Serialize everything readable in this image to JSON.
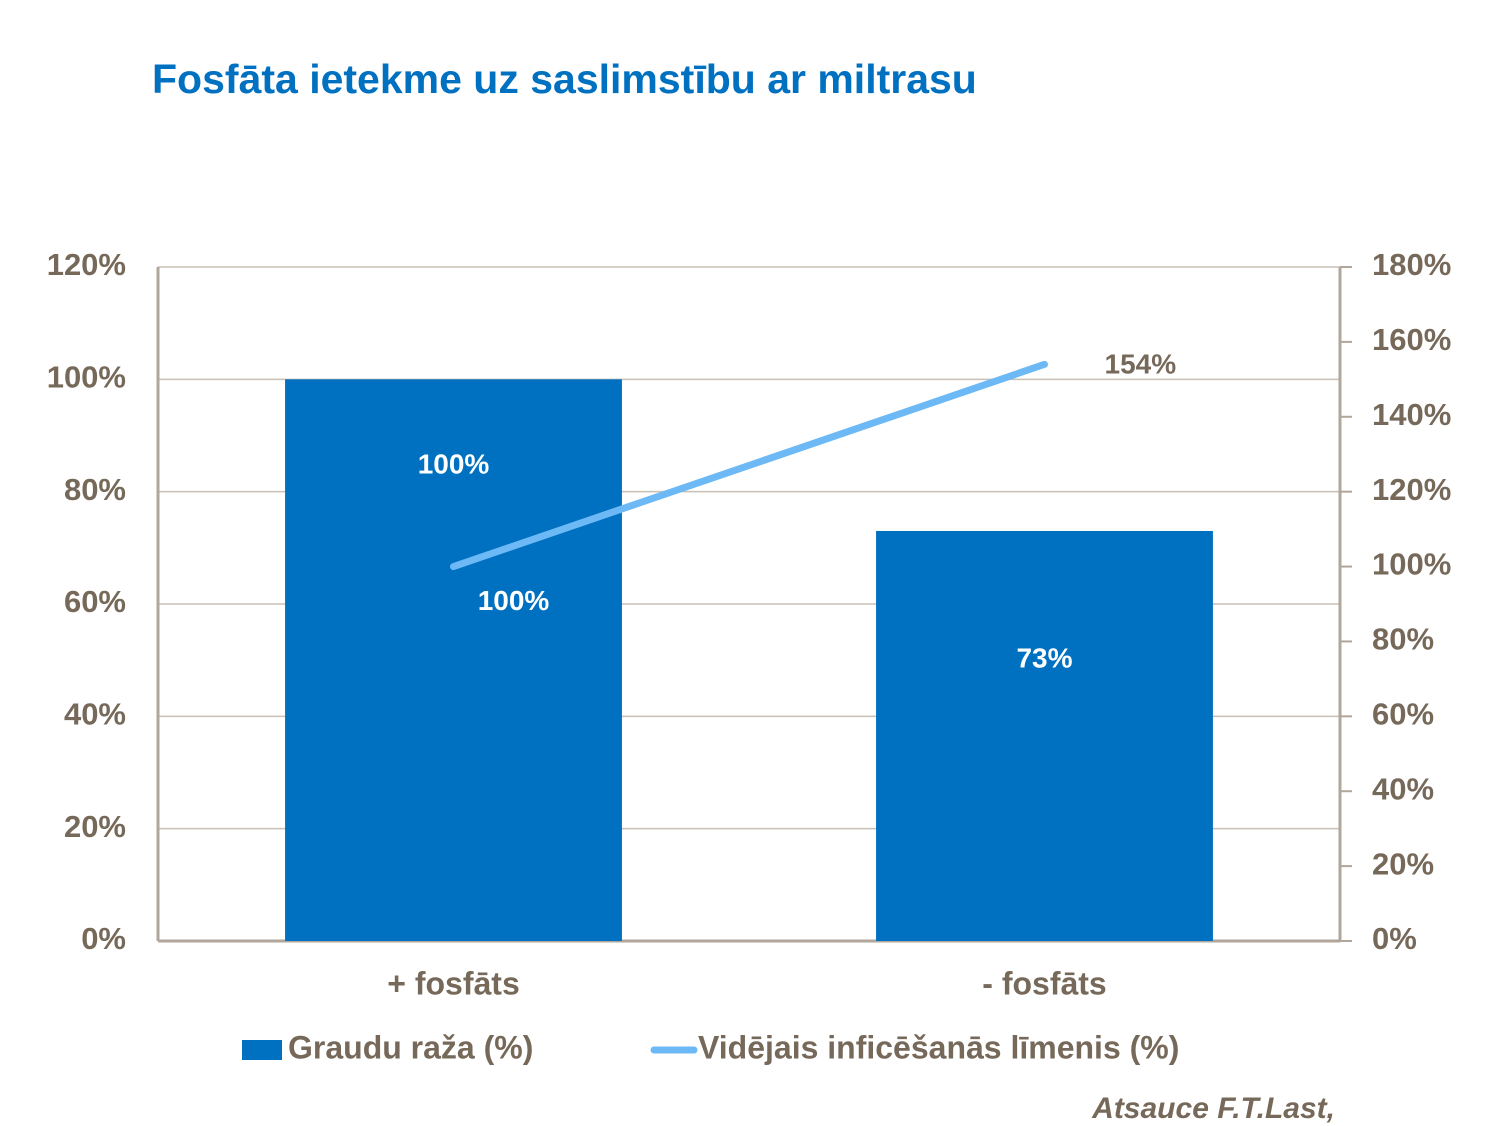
{
  "chart_data": {
    "type": "bar_line",
    "title": "Fosfāta ietekme uz saslimstību ar miltrasu",
    "categories": [
      "+ fosfāts",
      "- fosfāts"
    ],
    "series": [
      {
        "name": "Graudu raža (%)",
        "type": "bar",
        "color": "#0070c0",
        "values": [
          100,
          73
        ],
        "value_labels": [
          "100%",
          "73%"
        ]
      },
      {
        "name": "Vidējais inficēšanās līmenis (%)",
        "type": "line",
        "axis": "y2",
        "color": "#6cb9f5",
        "values": [
          100,
          154
        ],
        "value_labels": [
          "100%",
          "154%"
        ]
      }
    ],
    "ylim": [
      0,
      120
    ],
    "yticks": [
      {
        "value": 0,
        "label": "0%"
      },
      {
        "value": 20,
        "label": "20%"
      },
      {
        "value": 40,
        "label": "40%"
      },
      {
        "value": 60,
        "label": "60%"
      },
      {
        "value": 80,
        "label": "80%"
      },
      {
        "value": 100,
        "label": "100%"
      },
      {
        "value": 120,
        "label": "120%"
      }
    ],
    "y2lim": [
      0,
      180
    ],
    "y2ticks": [
      {
        "value": 0,
        "label": "0%"
      },
      {
        "value": 20,
        "label": "20%"
      },
      {
        "value": 40,
        "label": "40%"
      },
      {
        "value": 60,
        "label": "60%"
      },
      {
        "value": 80,
        "label": "80%"
      },
      {
        "value": 100,
        "label": "100%"
      },
      {
        "value": 120,
        "label": "120%"
      },
      {
        "value": 140,
        "label": "140%"
      },
      {
        "value": 160,
        "label": "160%"
      },
      {
        "value": 180,
        "label": "180%"
      }
    ],
    "grid": true,
    "legend": "bottom",
    "source": "Atsauce F.T.Last,"
  }
}
